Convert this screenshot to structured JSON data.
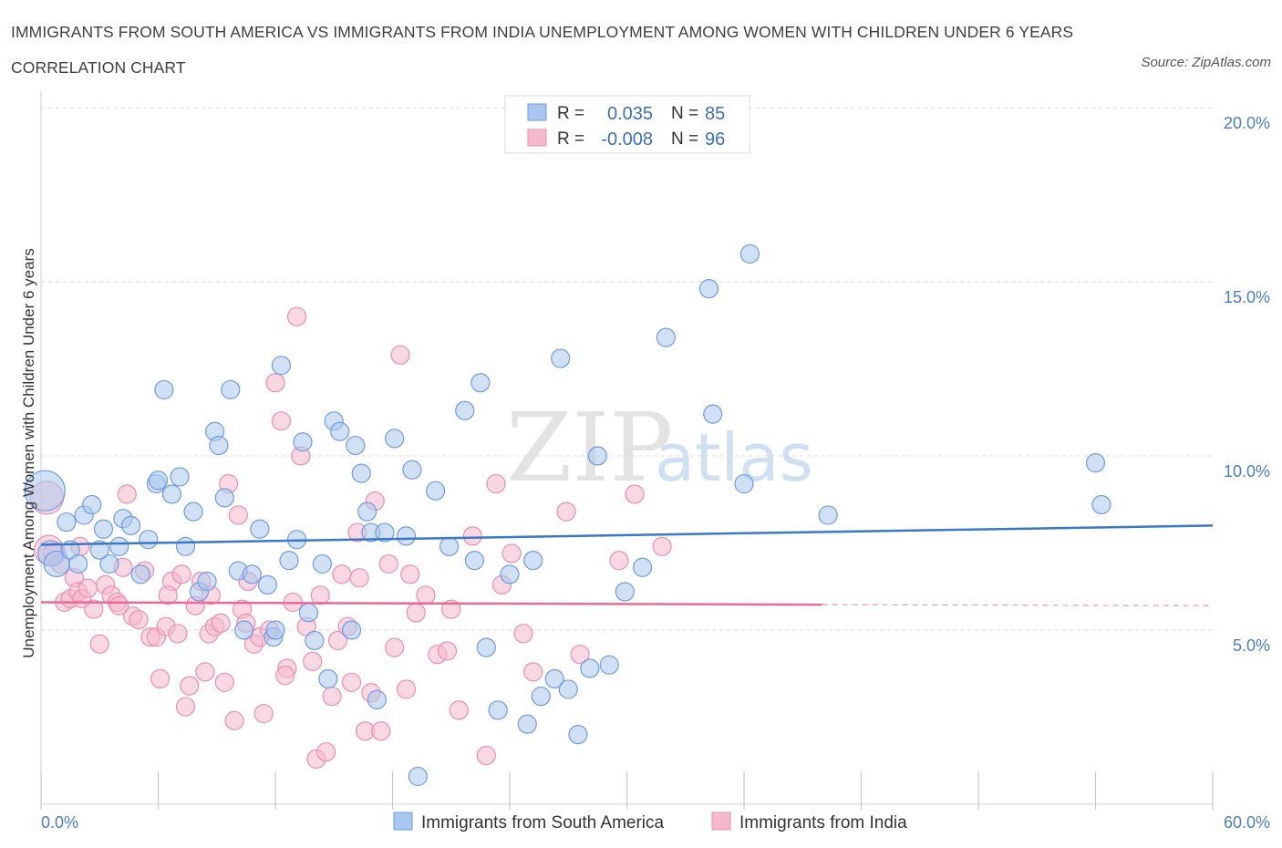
{
  "title": "IMMIGRANTS FROM SOUTH AMERICA VS IMMIGRANTS FROM INDIA UNEMPLOYMENT AMONG WOMEN WITH CHILDREN UNDER 6 YEARS CORRELATION CHART",
  "source": "Source: ZipAtlas.com",
  "watermark": {
    "zip": "ZIP",
    "atlas": "atlas"
  },
  "legend": {
    "r_label": "R =",
    "n_label": "N =",
    "series1_r": "0.035",
    "series1_n": "85",
    "series2_r": "-0.008",
    "series2_n": "96"
  },
  "colors": {
    "blue_fill": "#a9c8ef",
    "blue_stroke": "#6f9be0",
    "blue_line": "#3a78c9",
    "pink_fill": "#f5b8cc",
    "pink_stroke": "#ea8fae",
    "pink_line": "#e86a96",
    "grid": "#d8d8d8",
    "tick_text": "#4a7cc8"
  },
  "chart_data": {
    "type": "scatter",
    "title": "IMMIGRANTS FROM SOUTH AMERICA VS IMMIGRANTS FROM INDIA UNEMPLOYMENT AMONG WOMEN WITH CHILDREN UNDER 6 YEARS CORRELATION CHART",
    "xlabel": "",
    "ylabel": "Unemployment Among Women with Children Under 6 years",
    "xlim": [
      0,
      60
    ],
    "ylim": [
      0,
      20
    ],
    "x_tick_labels": [
      "0.0%",
      "60.0%"
    ],
    "y_ticks": [
      5,
      10,
      15,
      20
    ],
    "y_tick_labels": [
      "5.0%",
      "10.0%",
      "15.0%",
      "20.0%"
    ],
    "grid": true,
    "legend_position": "top-center",
    "series": [
      {
        "name": "Immigrants from South America",
        "r": 0.035,
        "n": 85,
        "trend": {
          "x0": 0,
          "y0": 7.45,
          "x1": 60,
          "y1": 8.0
        },
        "points": [
          [
            0.2,
            9.0,
            22
          ],
          [
            0.5,
            7.2,
            14
          ],
          [
            0.8,
            6.9,
            14
          ],
          [
            1.3,
            8.1,
            10
          ],
          [
            1.5,
            7.3,
            10
          ],
          [
            1.9,
            6.9,
            10
          ],
          [
            2.2,
            8.3,
            10
          ],
          [
            2.6,
            8.6,
            10
          ],
          [
            3.2,
            7.9,
            10
          ],
          [
            3.5,
            6.9,
            10
          ],
          [
            4.0,
            7.4,
            10
          ],
          [
            4.2,
            8.2,
            10
          ],
          [
            4.6,
            8.0,
            10
          ],
          [
            5.1,
            6.6,
            10
          ],
          [
            5.5,
            7.6,
            10
          ],
          [
            5.9,
            9.2,
            10
          ],
          [
            6.3,
            11.9,
            10
          ],
          [
            6.7,
            8.9,
            10
          ],
          [
            7.1,
            9.4,
            10
          ],
          [
            7.4,
            7.4,
            10
          ],
          [
            7.8,
            8.4,
            10
          ],
          [
            8.1,
            6.1,
            10
          ],
          [
            8.5,
            6.4,
            10
          ],
          [
            8.9,
            10.7,
            10
          ],
          [
            9.1,
            10.3,
            10
          ],
          [
            9.4,
            8.8,
            10
          ],
          [
            9.7,
            11.9,
            10
          ],
          [
            10.1,
            6.7,
            10
          ],
          [
            10.4,
            5.0,
            10
          ],
          [
            10.8,
            6.6,
            10
          ],
          [
            11.2,
            7.9,
            10
          ],
          [
            11.6,
            6.3,
            10
          ],
          [
            11.9,
            4.8,
            10
          ],
          [
            12.3,
            12.6,
            10
          ],
          [
            12.7,
            7.0,
            10
          ],
          [
            13.1,
            7.6,
            10
          ],
          [
            13.4,
            10.4,
            10
          ],
          [
            13.7,
            5.5,
            10
          ],
          [
            14.0,
            4.7,
            10
          ],
          [
            14.4,
            6.9,
            10
          ],
          [
            14.7,
            3.6,
            10
          ],
          [
            15.0,
            11.0,
            10
          ],
          [
            15.3,
            10.7,
            10
          ],
          [
            16.1,
            10.3,
            10
          ],
          [
            16.4,
            9.5,
            10
          ],
          [
            16.7,
            8.4,
            10
          ],
          [
            16.9,
            7.8,
            10
          ],
          [
            17.2,
            3.0,
            10
          ],
          [
            17.6,
            7.8,
            10
          ],
          [
            18.1,
            10.5,
            10
          ],
          [
            18.7,
            7.7,
            10
          ],
          [
            19.3,
            0.8,
            10
          ],
          [
            20.2,
            9.0,
            10
          ],
          [
            20.9,
            7.4,
            10
          ],
          [
            21.7,
            11.3,
            10
          ],
          [
            22.2,
            7.0,
            10
          ],
          [
            22.8,
            4.5,
            10
          ],
          [
            23.4,
            2.7,
            10
          ],
          [
            24.0,
            6.6,
            10
          ],
          [
            24.9,
            2.3,
            10
          ],
          [
            25.2,
            7.0,
            10
          ],
          [
            25.6,
            3.1,
            10
          ],
          [
            26.3,
            3.6,
            10
          ],
          [
            26.6,
            12.8,
            10
          ],
          [
            27.0,
            3.3,
            10
          ],
          [
            27.5,
            2.0,
            10
          ],
          [
            28.1,
            3.9,
            10
          ],
          [
            29.1,
            4.0,
            10
          ],
          [
            29.9,
            6.1,
            10
          ],
          [
            30.8,
            6.8,
            10
          ],
          [
            32.0,
            13.4,
            10
          ],
          [
            34.2,
            14.8,
            10
          ],
          [
            34.4,
            11.2,
            10
          ],
          [
            36.3,
            15.8,
            10
          ],
          [
            40.3,
            8.3,
            10
          ],
          [
            54.0,
            9.8,
            10
          ],
          [
            54.3,
            8.6,
            10
          ],
          [
            3.0,
            7.3,
            10
          ],
          [
            6.0,
            9.3,
            10
          ],
          [
            12.0,
            5.0,
            10
          ],
          [
            15.9,
            5.0,
            10
          ],
          [
            19.0,
            9.6,
            10
          ],
          [
            22.5,
            12.1,
            10
          ],
          [
            28.5,
            10.0,
            10
          ],
          [
            36.0,
            9.2,
            10
          ]
        ]
      },
      {
        "name": "Immigrants from India",
        "r": -0.008,
        "n": 96,
        "trend": {
          "x0": 0,
          "y0": 5.8,
          "x1": 40,
          "y1": 5.73,
          "dash_to_x": 60,
          "dash_to_y": 5.7
        },
        "points": [
          [
            0.3,
            8.8,
            18
          ],
          [
            0.4,
            7.3,
            16
          ],
          [
            0.7,
            7.2,
            12
          ],
          [
            1.0,
            6.9,
            10
          ],
          [
            1.2,
            5.8,
            10
          ],
          [
            1.5,
            5.9,
            10
          ],
          [
            1.7,
            6.5,
            10
          ],
          [
            1.9,
            6.1,
            10
          ],
          [
            2.1,
            5.9,
            10
          ],
          [
            2.4,
            6.2,
            10
          ],
          [
            2.7,
            5.6,
            10
          ],
          [
            3.0,
            4.6,
            10
          ],
          [
            3.3,
            6.3,
            10
          ],
          [
            3.6,
            6.0,
            10
          ],
          [
            3.9,
            5.8,
            10
          ],
          [
            4.2,
            6.8,
            10
          ],
          [
            4.4,
            8.9,
            10
          ],
          [
            4.7,
            5.4,
            10
          ],
          [
            5.0,
            5.3,
            10
          ],
          [
            5.3,
            6.7,
            10
          ],
          [
            5.6,
            4.8,
            10
          ],
          [
            5.9,
            4.8,
            10
          ],
          [
            6.1,
            3.6,
            10
          ],
          [
            6.4,
            5.1,
            10
          ],
          [
            6.7,
            6.4,
            10
          ],
          [
            7.0,
            4.9,
            10
          ],
          [
            7.2,
            6.6,
            10
          ],
          [
            7.4,
            2.8,
            10
          ],
          [
            7.6,
            3.4,
            10
          ],
          [
            7.9,
            5.7,
            10
          ],
          [
            8.2,
            6.4,
            10
          ],
          [
            8.4,
            3.8,
            10
          ],
          [
            8.6,
            4.9,
            10
          ],
          [
            8.9,
            5.1,
            10
          ],
          [
            9.2,
            5.2,
            10
          ],
          [
            9.4,
            3.5,
            10
          ],
          [
            9.6,
            9.2,
            10
          ],
          [
            9.9,
            2.4,
            10
          ],
          [
            10.1,
            8.3,
            10
          ],
          [
            10.3,
            5.6,
            10
          ],
          [
            10.6,
            6.4,
            10
          ],
          [
            10.9,
            4.6,
            10
          ],
          [
            11.2,
            4.8,
            10
          ],
          [
            11.4,
            2.6,
            10
          ],
          [
            11.7,
            5.0,
            10
          ],
          [
            12.0,
            12.1,
            10
          ],
          [
            12.3,
            11.0,
            10
          ],
          [
            12.6,
            3.9,
            10
          ],
          [
            12.9,
            5.8,
            10
          ],
          [
            13.1,
            14.0,
            10
          ],
          [
            13.3,
            10.0,
            10
          ],
          [
            13.6,
            5.1,
            10
          ],
          [
            13.9,
            4.1,
            10
          ],
          [
            14.1,
            1.3,
            10
          ],
          [
            14.3,
            6.0,
            10
          ],
          [
            14.6,
            1.5,
            10
          ],
          [
            14.9,
            3.1,
            10
          ],
          [
            15.2,
            4.7,
            10
          ],
          [
            15.4,
            6.6,
            10
          ],
          [
            15.7,
            5.1,
            10
          ],
          [
            15.9,
            3.5,
            10
          ],
          [
            16.2,
            7.8,
            10
          ],
          [
            16.6,
            2.1,
            10
          ],
          [
            16.9,
            3.2,
            10
          ],
          [
            17.1,
            8.7,
            10
          ],
          [
            17.4,
            2.1,
            10
          ],
          [
            17.8,
            6.9,
            10
          ],
          [
            18.1,
            4.5,
            10
          ],
          [
            18.4,
            12.9,
            10
          ],
          [
            18.7,
            3.3,
            10
          ],
          [
            19.2,
            5.5,
            10
          ],
          [
            19.7,
            6.0,
            10
          ],
          [
            20.3,
            4.3,
            10
          ],
          [
            20.8,
            4.4,
            10
          ],
          [
            21.4,
            2.7,
            10
          ],
          [
            22.1,
            7.7,
            10
          ],
          [
            22.8,
            1.4,
            10
          ],
          [
            23.3,
            9.2,
            10
          ],
          [
            23.6,
            6.3,
            10
          ],
          [
            24.7,
            4.9,
            10
          ],
          [
            25.2,
            3.8,
            10
          ],
          [
            26.9,
            8.4,
            10
          ],
          [
            27.6,
            4.3,
            10
          ],
          [
            29.6,
            7.0,
            10
          ],
          [
            30.4,
            8.9,
            10
          ],
          [
            31.8,
            7.4,
            10
          ],
          [
            2.0,
            7.4,
            10
          ],
          [
            4.0,
            5.7,
            10
          ],
          [
            6.5,
            6.0,
            10
          ],
          [
            8.7,
            6.0,
            10
          ],
          [
            10.5,
            5.2,
            10
          ],
          [
            12.5,
            3.7,
            10
          ],
          [
            16.3,
            6.5,
            10
          ],
          [
            18.9,
            6.6,
            10
          ],
          [
            21.0,
            5.6,
            10
          ],
          [
            24.1,
            7.2,
            10
          ]
        ]
      }
    ]
  }
}
